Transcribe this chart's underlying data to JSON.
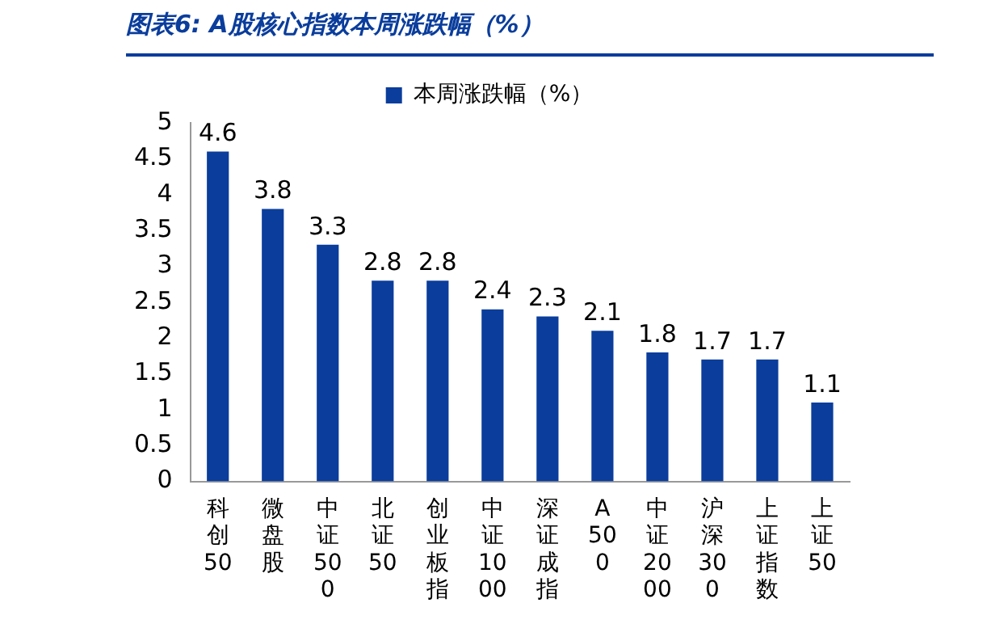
{
  "chart_data": {
    "type": "bar",
    "title": "图表6:  A股核心指数本周涨跌幅（%）",
    "categories": [
      "科创50",
      "微盘股",
      "中证500",
      "北证50",
      "创业板指",
      "中证1000",
      "深证成指",
      "A500",
      "中证2000",
      "沪深300",
      "上证指数",
      "上证50"
    ],
    "series": [
      {
        "name": "本周涨跌幅（%）",
        "color": "#0a3d9c",
        "values": [
          4.6,
          3.8,
          3.3,
          2.8,
          2.8,
          2.4,
          2.3,
          2.1,
          1.8,
          1.7,
          1.7,
          1.1
        ]
      }
    ],
    "ylim": [
      0,
      5
    ],
    "yticks": [
      0,
      0.5,
      1,
      1.5,
      2,
      2.5,
      3,
      3.5,
      4,
      4.5,
      5
    ],
    "grid": false,
    "legend": "top",
    "data_labels": true
  }
}
